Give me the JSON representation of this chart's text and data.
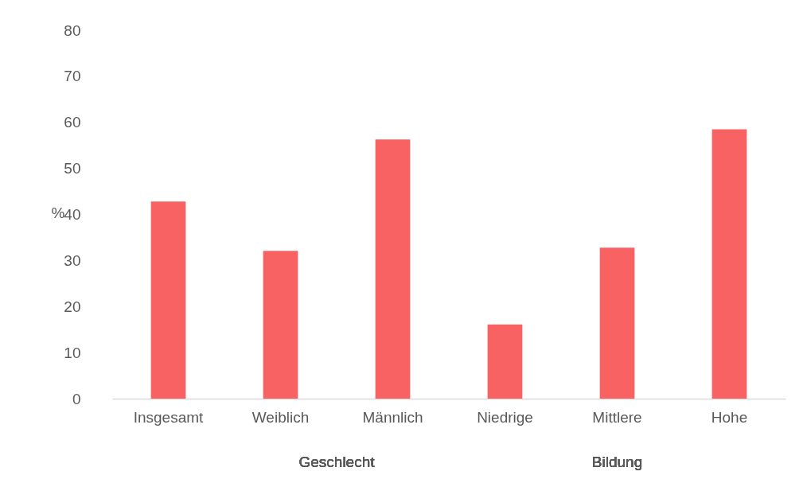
{
  "chart_data": {
    "type": "bar",
    "ylabel": "%",
    "categories": [
      "Insgesamt",
      "Weiblich",
      "Männlich",
      "Niedrige",
      "Mittlere",
      "Hohe"
    ],
    "values": [
      42.8,
      32.1,
      56.3,
      16.1,
      32.8,
      58.5
    ],
    "color": "#f96262",
    "ylim": [
      0,
      80
    ],
    "yticks": [
      0,
      10,
      20,
      30,
      40,
      50,
      60,
      70,
      80
    ],
    "grid": false,
    "annotations": [
      "Geschlecht",
      "Bildung"
    ]
  }
}
